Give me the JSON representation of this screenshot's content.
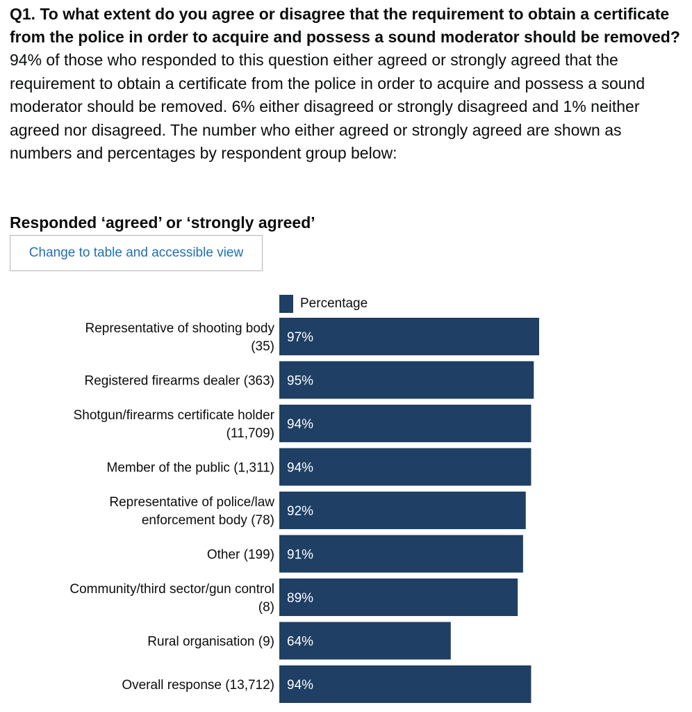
{
  "question": "Q1. To what extent do you agree or disagree that the requirement to obtain a certificate from the police in order to acquire and possess a sound moderator should be removed?",
  "summary": "94% of those who responded to this question either agreed or strongly agreed that the requirement to obtain a certificate from the police in order to acquire and possess a sound moderator should be removed.  6% either disagreed or strongly disagreed and 1% neither agreed nor disagreed.  The number who either agreed or strongly agreed are shown as numbers and percentages by respondent group below:",
  "chart_heading": "Responded ‘agreed’ or ‘strongly agreed’",
  "toggle_label": "Change to table and accessible view",
  "colors": {
    "bar": "#1f3f64",
    "link": "#1d70b8"
  },
  "chart_data": {
    "type": "bar",
    "orientation": "horizontal",
    "title": "Responded ‘agreed’ or ‘strongly agreed’",
    "legend": [
      "Percentage"
    ],
    "legend_position": "top",
    "categories": [
      [
        "Representative of shooting body",
        "(35)"
      ],
      [
        "Registered firearms dealer (363)"
      ],
      [
        "Shotgun/firearms certificate holder",
        "(11,709)"
      ],
      [
        "Member of the public (1,311)"
      ],
      [
        "Representative of police/law",
        "enforcement body (78)"
      ],
      [
        "Other (199)"
      ],
      [
        "Community/third sector/gun control",
        "(8)"
      ],
      [
        "Rural organisation (9)"
      ],
      [
        "Overall response (13,712)"
      ]
    ],
    "series": [
      {
        "name": "Percentage",
        "values": [
          97,
          95,
          94,
          94,
          92,
          91,
          89,
          64,
          94
        ],
        "labels": [
          "97%",
          "95%",
          "94%",
          "94%",
          "92%",
          "91%",
          "89%",
          "64%",
          "94%"
        ]
      }
    ],
    "xlim": [
      0,
      100
    ]
  }
}
